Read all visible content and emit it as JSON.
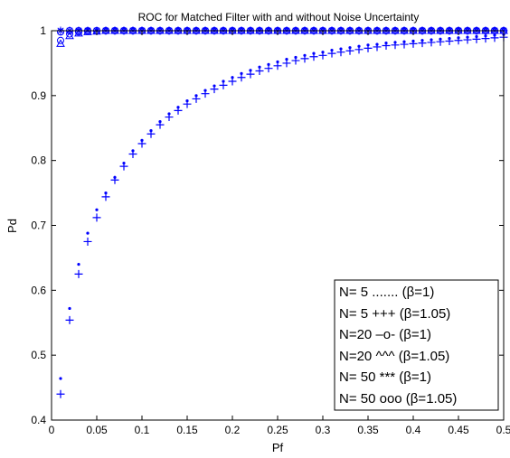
{
  "chart_data": {
    "type": "scatter",
    "title": "ROC for Matched Filter with and without Noise Uncertainty",
    "xlabel": "Pf",
    "ylabel": "Pd",
    "xlim": [
      0,
      0.5
    ],
    "ylim": [
      0.4,
      1
    ],
    "x_ticks": [
      "0",
      "0.05",
      "0.1",
      "0.15",
      "0.2",
      "0.25",
      "0.3",
      "0.35",
      "0.4",
      "0.45",
      "0.5"
    ],
    "y_ticks": [
      "0.4",
      "0.5",
      "0.6",
      "0.7",
      "0.8",
      "0.9",
      "1"
    ],
    "grid": false,
    "legend_position": "bottom-right",
    "marker_color": "#0000ff",
    "legend": [
      "N=  5 .......  (β=1)",
      "N=  5 +++  (β=1.05)",
      "N=20 –o-  (β=1)",
      "N=20 ^^^ (β=1.05)",
      "N= 50 ***  (β=1)",
      "N= 50 ooo (β=1.05)"
    ],
    "series": [
      {
        "marker": "dot",
        "x": [
          0.01,
          0.02,
          0.03,
          0.04,
          0.05,
          0.06,
          0.07,
          0.08,
          0.09,
          0.1,
          0.11,
          0.12,
          0.13,
          0.14,
          0.15,
          0.16,
          0.17,
          0.18,
          0.19,
          0.2,
          0.21,
          0.22,
          0.23,
          0.24,
          0.25,
          0.26,
          0.27,
          0.28,
          0.29,
          0.3,
          0.31,
          0.32,
          0.33,
          0.34,
          0.35,
          0.36,
          0.37,
          0.38,
          0.39,
          0.4,
          0.41,
          0.42,
          0.43,
          0.44,
          0.45,
          0.46,
          0.47,
          0.48,
          0.49,
          0.5
        ],
        "y": [
          0.464,
          0.572,
          0.64,
          0.688,
          0.724,
          0.75,
          0.774,
          0.796,
          0.815,
          0.831,
          0.846,
          0.86,
          0.872,
          0.882,
          0.892,
          0.9,
          0.908,
          0.915,
          0.922,
          0.928,
          0.934,
          0.939,
          0.944,
          0.948,
          0.952,
          0.956,
          0.959,
          0.962,
          0.965,
          0.967,
          0.97,
          0.972,
          0.974,
          0.976,
          0.978,
          0.979,
          0.981,
          0.982,
          0.983,
          0.984,
          0.985,
          0.986,
          0.987,
          0.988,
          0.989,
          0.99,
          0.991,
          0.992,
          0.993,
          0.994
        ]
      },
      {
        "marker": "plus",
        "x": [
          0.01,
          0.02,
          0.03,
          0.04,
          0.05,
          0.06,
          0.07,
          0.08,
          0.09,
          0.1,
          0.11,
          0.12,
          0.13,
          0.14,
          0.15,
          0.16,
          0.17,
          0.18,
          0.19,
          0.2,
          0.21,
          0.22,
          0.23,
          0.24,
          0.25,
          0.26,
          0.27,
          0.28,
          0.29,
          0.3,
          0.31,
          0.32,
          0.33,
          0.34,
          0.35,
          0.36,
          0.37,
          0.38,
          0.39,
          0.4,
          0.41,
          0.42,
          0.43,
          0.44,
          0.45,
          0.46,
          0.47,
          0.48,
          0.49,
          0.5
        ],
        "y": [
          0.44,
          0.554,
          0.625,
          0.675,
          0.712,
          0.744,
          0.77,
          0.791,
          0.81,
          0.826,
          0.841,
          0.855,
          0.867,
          0.877,
          0.887,
          0.895,
          0.903,
          0.91,
          0.916,
          0.922,
          0.928,
          0.933,
          0.938,
          0.942,
          0.946,
          0.95,
          0.954,
          0.957,
          0.96,
          0.962,
          0.965,
          0.967,
          0.969,
          0.971,
          0.973,
          0.975,
          0.977,
          0.978,
          0.979,
          0.98,
          0.981,
          0.982,
          0.983,
          0.984,
          0.985,
          0.986,
          0.987,
          0.988,
          0.989,
          0.99
        ]
      },
      {
        "marker": "circle",
        "x": [
          0.01,
          0.02,
          0.03,
          0.04,
          0.05,
          0.06,
          0.07,
          0.08,
          0.09,
          0.1,
          0.11,
          0.12,
          0.13,
          0.14,
          0.15,
          0.16,
          0.17,
          0.18,
          0.19,
          0.2,
          0.21,
          0.22,
          0.23,
          0.24,
          0.25,
          0.26,
          0.27,
          0.28,
          0.29,
          0.3,
          0.31,
          0.32,
          0.33,
          0.34,
          0.35,
          0.36,
          0.37,
          0.38,
          0.39,
          0.4,
          0.41,
          0.42,
          0.43,
          0.44,
          0.45,
          0.46,
          0.47,
          0.48,
          0.49,
          0.5
        ],
        "y": [
          0.985,
          0.995,
          0.998,
          0.999,
          1.0,
          1.0,
          1.0,
          1.0,
          1.0,
          1.0,
          1.0,
          1.0,
          1.0,
          1.0,
          1.0,
          1.0,
          1.0,
          1.0,
          1.0,
          1.0,
          1.0,
          1.0,
          1.0,
          1.0,
          1.0,
          1.0,
          1.0,
          1.0,
          1.0,
          1.0,
          1.0,
          1.0,
          1.0,
          1.0,
          1.0,
          1.0,
          1.0,
          1.0,
          1.0,
          1.0,
          1.0,
          1.0,
          1.0,
          1.0,
          1.0,
          1.0,
          1.0,
          1.0,
          1.0,
          1.0
        ]
      },
      {
        "marker": "triangle",
        "x": [
          0.01,
          0.02,
          0.03,
          0.04,
          0.05,
          0.06,
          0.07,
          0.08,
          0.09,
          0.1,
          0.11,
          0.12,
          0.13,
          0.14,
          0.15,
          0.16,
          0.17,
          0.18,
          0.19,
          0.2,
          0.21,
          0.22,
          0.23,
          0.24,
          0.25,
          0.26,
          0.27,
          0.28,
          0.29,
          0.3,
          0.31,
          0.32,
          0.33,
          0.34,
          0.35,
          0.36,
          0.37,
          0.38,
          0.39,
          0.4,
          0.41,
          0.42,
          0.43,
          0.44,
          0.45,
          0.46,
          0.47,
          0.48,
          0.49,
          0.5
        ],
        "y": [
          0.98,
          0.992,
          0.996,
          0.998,
          0.999,
          1.0,
          1.0,
          1.0,
          1.0,
          1.0,
          1.0,
          1.0,
          1.0,
          1.0,
          1.0,
          1.0,
          1.0,
          1.0,
          1.0,
          1.0,
          1.0,
          1.0,
          1.0,
          1.0,
          1.0,
          1.0,
          1.0,
          1.0,
          1.0,
          1.0,
          1.0,
          1.0,
          1.0,
          1.0,
          1.0,
          1.0,
          1.0,
          1.0,
          1.0,
          1.0,
          1.0,
          1.0,
          1.0,
          1.0,
          1.0,
          1.0,
          1.0,
          1.0,
          1.0,
          1.0
        ]
      },
      {
        "marker": "asterisk",
        "x": [
          0.01,
          0.02,
          0.03,
          0.04,
          0.05,
          0.06,
          0.07,
          0.08,
          0.09,
          0.1,
          0.11,
          0.12,
          0.13,
          0.14,
          0.15,
          0.16,
          0.17,
          0.18,
          0.19,
          0.2,
          0.21,
          0.22,
          0.23,
          0.24,
          0.25,
          0.26,
          0.27,
          0.28,
          0.29,
          0.3,
          0.31,
          0.32,
          0.33,
          0.34,
          0.35,
          0.36,
          0.37,
          0.38,
          0.39,
          0.4,
          0.41,
          0.42,
          0.43,
          0.44,
          0.45,
          0.46,
          0.47,
          0.48,
          0.49,
          0.5
        ],
        "y": [
          1.0,
          1.0,
          1.0,
          1.0,
          1.0,
          1.0,
          1.0,
          1.0,
          1.0,
          1.0,
          1.0,
          1.0,
          1.0,
          1.0,
          1.0,
          1.0,
          1.0,
          1.0,
          1.0,
          1.0,
          1.0,
          1.0,
          1.0,
          1.0,
          1.0,
          1.0,
          1.0,
          1.0,
          1.0,
          1.0,
          1.0,
          1.0,
          1.0,
          1.0,
          1.0,
          1.0,
          1.0,
          1.0,
          1.0,
          1.0,
          1.0,
          1.0,
          1.0,
          1.0,
          1.0,
          1.0,
          1.0,
          1.0,
          1.0,
          1.0
        ]
      },
      {
        "marker": "circle",
        "x": [
          0.01,
          0.02,
          0.03,
          0.04,
          0.05,
          0.06,
          0.07,
          0.08,
          0.09,
          0.1,
          0.11,
          0.12,
          0.13,
          0.14,
          0.15,
          0.16,
          0.17,
          0.18,
          0.19,
          0.2,
          0.21,
          0.22,
          0.23,
          0.24,
          0.25,
          0.26,
          0.27,
          0.28,
          0.29,
          0.3,
          0.31,
          0.32,
          0.33,
          0.34,
          0.35,
          0.36,
          0.37,
          0.38,
          0.39,
          0.4,
          0.41,
          0.42,
          0.43,
          0.44,
          0.45,
          0.46,
          0.47,
          0.48,
          0.49,
          0.5
        ],
        "y": [
          0.998,
          1.0,
          1.0,
          1.0,
          1.0,
          1.0,
          1.0,
          1.0,
          1.0,
          1.0,
          1.0,
          1.0,
          1.0,
          1.0,
          1.0,
          1.0,
          1.0,
          1.0,
          1.0,
          1.0,
          1.0,
          1.0,
          1.0,
          1.0,
          1.0,
          1.0,
          1.0,
          1.0,
          1.0,
          1.0,
          1.0,
          1.0,
          1.0,
          1.0,
          1.0,
          1.0,
          1.0,
          1.0,
          1.0,
          1.0,
          1.0,
          1.0,
          1.0,
          1.0,
          1.0,
          1.0,
          1.0,
          1.0,
          1.0,
          1.0
        ]
      }
    ]
  }
}
